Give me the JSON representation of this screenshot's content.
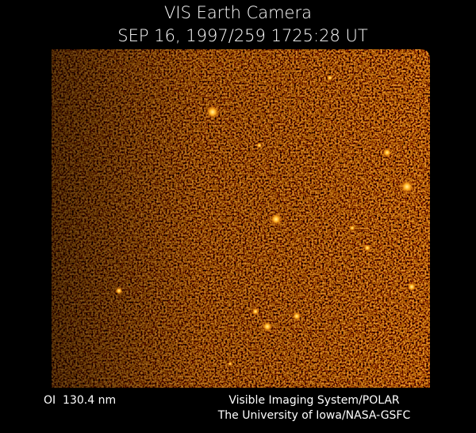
{
  "header": {
    "title": "VIS Earth Camera",
    "timestamp": "SEP 16, 1997/259 1725:28 UT"
  },
  "footer": {
    "filter": "OI  130.4 nm",
    "instrument": "Visible Imaging System/POLAR",
    "institution": "The University of Iowa/NASA-GSFC"
  }
}
